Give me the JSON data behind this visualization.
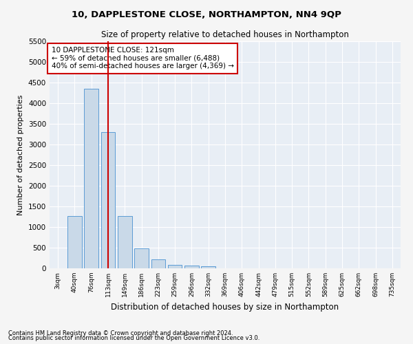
{
  "title": "10, DAPPLESTONE CLOSE, NORTHAMPTON, NN4 9QP",
  "subtitle": "Size of property relative to detached houses in Northampton",
  "xlabel": "Distribution of detached houses by size in Northampton",
  "ylabel": "Number of detached properties",
  "footnote1": "Contains HM Land Registry data © Crown copyright and database right 2024.",
  "footnote2": "Contains public sector information licensed under the Open Government Licence v3.0.",
  "annotation_line1": "10 DAPPLESTONE CLOSE: 121sqm",
  "annotation_line2": "← 59% of detached houses are smaller (6,488)",
  "annotation_line3": "40% of semi-detached houses are larger (4,369) →",
  "bar_color": "#c9d9e8",
  "bar_edge_color": "#5b9bd5",
  "vline_color": "#cc0000",
  "background_color": "#e8eef5",
  "fig_background_color": "#f5f5f5",
  "grid_color": "#ffffff",
  "annotation_box_color": "#ffffff",
  "annotation_box_edge": "#cc0000",
  "categories": [
    "3sqm",
    "40sqm",
    "76sqm",
    "113sqm",
    "149sqm",
    "186sqm",
    "223sqm",
    "259sqm",
    "296sqm",
    "332sqm",
    "369sqm",
    "406sqm",
    "442sqm",
    "479sqm",
    "515sqm",
    "552sqm",
    "589sqm",
    "625sqm",
    "662sqm",
    "698sqm",
    "735sqm"
  ],
  "values": [
    0,
    1270,
    4350,
    3300,
    1270,
    490,
    220,
    90,
    60,
    55,
    0,
    0,
    0,
    0,
    0,
    0,
    0,
    0,
    0,
    0,
    0
  ],
  "ylim": [
    0,
    5500
  ],
  "yticks": [
    0,
    500,
    1000,
    1500,
    2000,
    2500,
    3000,
    3500,
    4000,
    4500,
    5000,
    5500
  ],
  "vline_x_index": 3,
  "figsize": [
    6.0,
    5.0
  ],
  "dpi": 100
}
